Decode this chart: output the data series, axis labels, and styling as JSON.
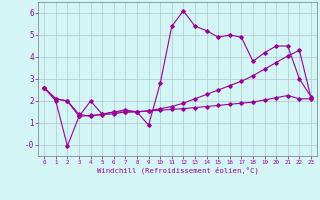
{
  "xlabel": "Windchill (Refroidissement éolien,°C)",
  "x": [
    0,
    1,
    2,
    3,
    4,
    5,
    6,
    7,
    8,
    9,
    10,
    11,
    12,
    13,
    14,
    15,
    16,
    17,
    18,
    19,
    20,
    21,
    22,
    23
  ],
  "line1_y": [
    2.6,
    2.1,
    2.0,
    1.3,
    2.0,
    1.4,
    1.5,
    1.6,
    1.5,
    0.9,
    2.8,
    5.4,
    6.1,
    5.4,
    5.2,
    4.9,
    5.0,
    4.9,
    3.8,
    4.2,
    4.5,
    4.5,
    3.0,
    2.2
  ],
  "line2_y": [
    2.6,
    2.1,
    2.0,
    1.4,
    1.3,
    1.4,
    1.5,
    1.5,
    1.5,
    1.55,
    1.65,
    1.75,
    1.9,
    2.1,
    2.3,
    2.5,
    2.7,
    2.9,
    3.15,
    3.45,
    3.75,
    4.05,
    4.3,
    2.15
  ],
  "line3_y": [
    2.6,
    2.0,
    -0.05,
    1.3,
    1.35,
    1.38,
    1.42,
    1.5,
    1.52,
    1.55,
    1.58,
    1.62,
    1.65,
    1.7,
    1.75,
    1.8,
    1.85,
    1.9,
    1.95,
    2.05,
    2.15,
    2.25,
    2.1,
    2.1
  ],
  "line_color": "#990099",
  "bg_color": "#d4f5f5",
  "grid_color": "#b0c8c8",
  "ylim": [
    -0.5,
    6.5
  ],
  "xlim": [
    -0.5,
    23.5
  ],
  "yticks": [
    0,
    1,
    2,
    3,
    4,
    5,
    6
  ],
  "ytick_labels": [
    "-0",
    "1",
    "2",
    "3",
    "4",
    "5",
    "6"
  ],
  "xticks": [
    0,
    1,
    2,
    3,
    4,
    5,
    6,
    7,
    8,
    9,
    10,
    11,
    12,
    13,
    14,
    15,
    16,
    17,
    18,
    19,
    20,
    21,
    22,
    23
  ]
}
